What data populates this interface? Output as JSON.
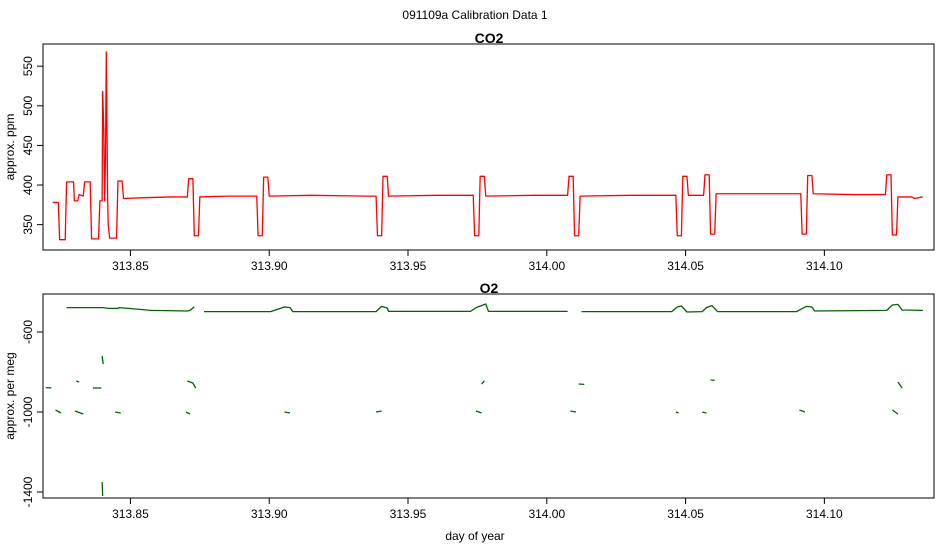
{
  "suptitle": "091109a   Calibration Data 1",
  "chart_data": [
    {
      "type": "line",
      "title": "CO2",
      "xlabel": "",
      "ylabel": "approx. ppm",
      "xlim": [
        313.8185,
        314.1395
      ],
      "ylim": [
        318,
        578
      ],
      "xticks": [
        "313.85",
        "313.90",
        "313.95",
        "314.00",
        "314.05",
        "314.10"
      ],
      "xtick_values": [
        313.85,
        313.9,
        313.95,
        314.0,
        314.05,
        314.1
      ],
      "yticks": [
        "350",
        "400",
        "450",
        "500",
        "550"
      ],
      "ytick_values": [
        350,
        400,
        450,
        500,
        550
      ],
      "color": "#ff0000",
      "series": [
        {
          "values": [
            [
              313.822,
              378
            ],
            [
              313.824,
              378
            ],
            [
              313.8245,
              331
            ],
            [
              313.8265,
              331
            ],
            [
              313.827,
              404
            ],
            [
              313.8295,
              404
            ],
            [
              313.8298,
              380
            ],
            [
              313.831,
              380
            ],
            [
              313.8315,
              388
            ],
            [
              313.833,
              386
            ],
            [
              313.8335,
              404
            ],
            [
              313.8355,
              404
            ],
            [
              313.836,
              332
            ],
            [
              313.8385,
              332
            ],
            [
              313.839,
              380
            ],
            [
              313.8398,
              380
            ],
            [
              313.84,
              518
            ],
            [
              313.8404,
              470
            ],
            [
              313.8407,
              380
            ],
            [
              313.841,
              430
            ],
            [
              313.8413,
              568
            ],
            [
              313.8418,
              380
            ],
            [
              313.842,
              350
            ],
            [
              313.8425,
              333
            ],
            [
              313.845,
              333
            ],
            [
              313.8455,
              405
            ],
            [
              313.847,
              405
            ],
            [
              313.8475,
              383
            ],
            [
              313.855,
              384
            ],
            [
              313.865,
              385
            ],
            [
              313.8705,
              385
            ],
            [
              313.871,
              408
            ],
            [
              313.8725,
              408
            ],
            [
              313.873,
              336
            ],
            [
              313.8745,
              336
            ],
            [
              313.875,
              385
            ],
            [
              313.885,
              386
            ],
            [
              313.8955,
              386
            ],
            [
              313.896,
              336
            ],
            [
              313.8975,
              336
            ],
            [
              313.898,
              410
            ],
            [
              313.8995,
              410
            ],
            [
              313.9,
              386
            ],
            [
              313.915,
              387
            ],
            [
              313.935,
              386
            ],
            [
              313.9385,
              386
            ],
            [
              313.939,
              336
            ],
            [
              313.9405,
              336
            ],
            [
              313.941,
              411
            ],
            [
              313.9425,
              411
            ],
            [
              313.943,
              386
            ],
            [
              313.96,
              387
            ],
            [
              313.9735,
              387
            ],
            [
              313.974,
              336
            ],
            [
              313.9755,
              336
            ],
            [
              313.976,
              411
            ],
            [
              313.9775,
              411
            ],
            [
              313.978,
              386
            ],
            [
              313.995,
              387
            ],
            [
              314.0075,
              387
            ],
            [
              314.008,
              411
            ],
            [
              314.0095,
              411
            ],
            [
              314.01,
              336
            ],
            [
              314.0115,
              336
            ],
            [
              314.012,
              386
            ],
            [
              314.03,
              387
            ],
            [
              314.045,
              387
            ],
            [
              314.0465,
              387
            ],
            [
              314.047,
              336
            ],
            [
              314.0485,
              336
            ],
            [
              314.049,
              411
            ],
            [
              314.0505,
              411
            ],
            [
              314.051,
              387
            ],
            [
              314.0565,
              387
            ],
            [
              314.057,
              413
            ],
            [
              314.0585,
              413
            ],
            [
              314.059,
              338
            ],
            [
              314.0605,
              338
            ],
            [
              314.061,
              389
            ],
            [
              314.075,
              389
            ],
            [
              314.0915,
              389
            ],
            [
              314.092,
              338
            ],
            [
              314.0935,
              338
            ],
            [
              314.094,
              412
            ],
            [
              314.0955,
              412
            ],
            [
              314.096,
              389
            ],
            [
              314.11,
              388
            ],
            [
              314.122,
              388
            ],
            [
              314.1225,
              413
            ],
            [
              314.124,
              413
            ],
            [
              314.1245,
              337
            ],
            [
              314.126,
              337
            ],
            [
              314.1265,
              385
            ],
            [
              314.1315,
              385
            ],
            [
              314.1325,
              383
            ],
            [
              314.1355,
              385
            ]
          ]
        }
      ]
    },
    {
      "type": "line",
      "title": "O2",
      "xlabel": "day of year",
      "ylabel": "approx. per meg",
      "xlim": [
        313.8185,
        314.1395
      ],
      "ylim": [
        -1430,
        -410
      ],
      "xticks": [
        "313.85",
        "313.90",
        "313.95",
        "314.00",
        "314.05",
        "314.10"
      ],
      "xtick_values": [
        313.85,
        313.9,
        313.95,
        314.0,
        314.05,
        314.1
      ],
      "yticks": [
        "-600",
        "-1000",
        "-1400"
      ],
      "ytick_values": [
        -600,
        -1000,
        -1400
      ],
      "color": "#006400",
      "series": [
        {
          "values": [
            [
              313.827,
              -478
            ],
            [
              313.84,
              -478
            ],
            [
              313.842,
              -482
            ],
            [
              313.8455,
              -482
            ],
            [
              313.846,
              -478
            ],
            [
              313.8575,
              -492
            ],
            [
              313.8705,
              -495
            ],
            [
              313.8715,
              -492
            ],
            [
              313.873,
              -474
            ]
          ]
        },
        {
          "values": [
            [
              313.8765,
              -498
            ],
            [
              313.9005,
              -498
            ],
            [
              313.9055,
              -475
            ],
            [
              313.9075,
              -478
            ],
            [
              313.9085,
              -498
            ],
            [
              313.9385,
              -498
            ],
            [
              313.9405,
              -472
            ],
            [
              313.9425,
              -480
            ],
            [
              313.943,
              -497
            ],
            [
              313.9725,
              -497
            ],
            [
              313.9745,
              -478
            ],
            [
              313.978,
              -460
            ],
            [
              313.979,
              -497
            ],
            [
              314.0075,
              -497
            ]
          ]
        },
        {
          "values": [
            [
              314.0125,
              -498
            ],
            [
              314.045,
              -498
            ],
            [
              314.047,
              -475
            ],
            [
              314.0485,
              -470
            ],
            [
              314.0505,
              -500
            ],
            [
              314.056,
              -498
            ],
            [
              314.0575,
              -478
            ],
            [
              314.0595,
              -468
            ],
            [
              314.0615,
              -498
            ],
            [
              314.09,
              -498
            ],
            [
              314.0935,
              -472
            ],
            [
              314.0955,
              -475
            ],
            [
              314.0965,
              -495
            ],
            [
              314.1225,
              -492
            ],
            [
              314.1245,
              -465
            ],
            [
              314.1265,
              -462
            ],
            [
              314.128,
              -490
            ],
            [
              314.1355,
              -492
            ]
          ]
        },
        {
          "values": [
            [
              313.8195,
              -878
            ],
            [
              313.8215,
              -880
            ]
          ]
        },
        {
          "values": [
            [
              313.8305,
              -845
            ],
            [
              313.8315,
              -850
            ]
          ]
        },
        {
          "values": [
            [
              313.8365,
              -880
            ],
            [
              313.8395,
              -880
            ]
          ]
        },
        {
          "values": [
            [
              313.8705,
              -845
            ],
            [
              313.8725,
              -855
            ],
            [
              313.8735,
              -880
            ]
          ]
        },
        {
          "values": [
            [
              313.9765,
              -860
            ],
            [
              313.9775,
              -845
            ]
          ]
        },
        {
          "values": [
            [
              314.0115,
              -860
            ],
            [
              314.0135,
              -862
            ]
          ]
        },
        {
          "values": [
            [
              314.059,
              -840
            ],
            [
              314.0605,
              -842
            ]
          ]
        },
        {
          "values": [
            [
              314.1265,
              -850
            ],
            [
              314.128,
              -880
            ]
          ]
        },
        {
          "values": [
            [
              313.823,
              -990
            ],
            [
              313.825,
              -1005
            ]
          ]
        },
        {
          "values": [
            [
              313.83,
              -995
            ],
            [
              313.833,
              -1010
            ]
          ]
        },
        {
          "values": [
            [
              313.8445,
              -1000
            ],
            [
              313.8465,
              -1005
            ]
          ]
        },
        {
          "values": [
            [
              313.87,
              -1000
            ],
            [
              313.8715,
              -1010
            ]
          ]
        },
        {
          "values": [
            [
              313.9055,
              -1000
            ],
            [
              313.9075,
              -1005
            ]
          ]
        },
        {
          "values": [
            [
              313.9385,
              -1000
            ],
            [
              313.9405,
              -995
            ]
          ]
        },
        {
          "values": [
            [
              313.9745,
              -995
            ],
            [
              313.9765,
              -1005
            ]
          ]
        },
        {
          "values": [
            [
              314.0085,
              -995
            ],
            [
              314.0105,
              -1000
            ]
          ]
        },
        {
          "values": [
            [
              314.0465,
              -1000
            ],
            [
              314.0475,
              -1005
            ]
          ]
        },
        {
          "values": [
            [
              314.056,
              -1000
            ],
            [
              314.0575,
              -1005
            ]
          ]
        },
        {
          "values": [
            [
              314.091,
              -990
            ],
            [
              314.093,
              -1000
            ]
          ]
        },
        {
          "values": [
            [
              314.1245,
              -990
            ],
            [
              314.1265,
              -1010
            ]
          ]
        },
        {
          "values": [
            [
              313.8398,
              -1350
            ],
            [
              313.84,
              -1420
            ]
          ]
        },
        {
          "values": [
            [
              313.8398,
              -720
            ],
            [
              313.8402,
              -760
            ]
          ]
        }
      ]
    }
  ]
}
